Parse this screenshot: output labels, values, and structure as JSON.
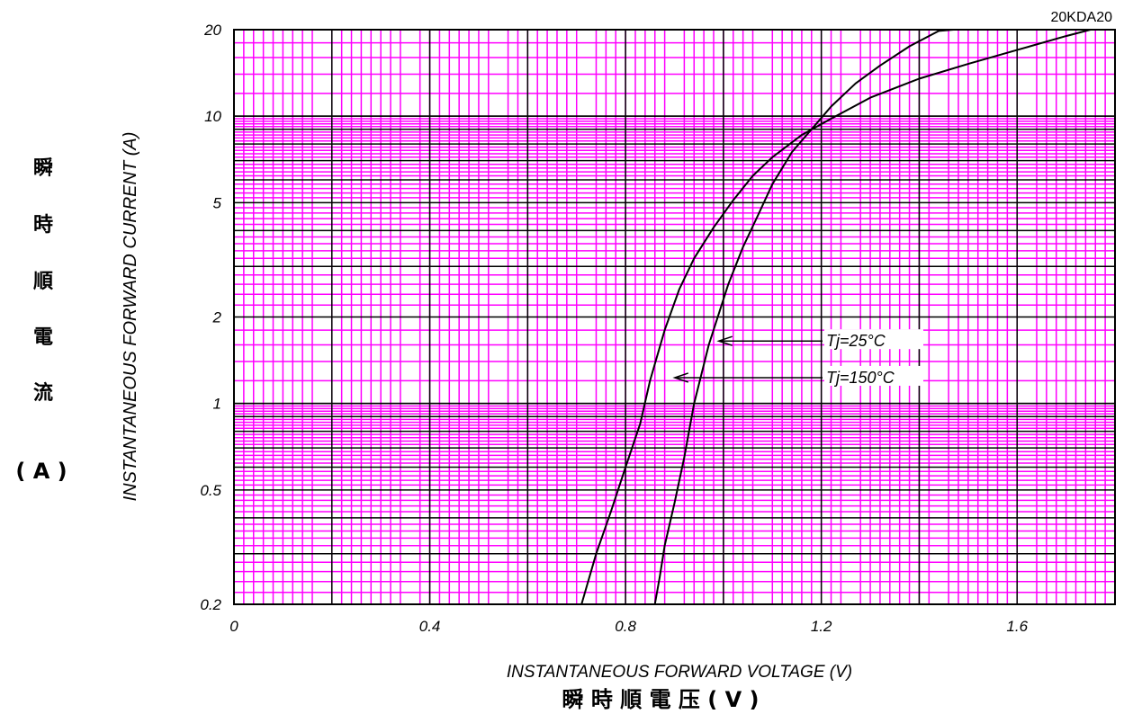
{
  "chart_data": {
    "type": "line",
    "model_label": "20KDA20",
    "y_axis_label_en": "INSTANTANEOUS FORWARD CURRENT (A)",
    "y_axis_label_cjk": [
      "瞬",
      "時",
      "順",
      "電",
      "流"
    ],
    "y_axis_unit_cjk": "( A )",
    "x_axis_label_en": "INSTANTANEOUS FORWARD VOLTAGE (V)",
    "x_axis_label_cjk": "瞬 時 順 電 压 ( V )",
    "x_scale": "linear",
    "y_scale": "log",
    "xlim": [
      0,
      1.8
    ],
    "ylim": [
      0.2,
      20
    ],
    "x_ticks": [
      {
        "value": 0,
        "label": "0"
      },
      {
        "value": 0.4,
        "label": "0.4"
      },
      {
        "value": 0.8,
        "label": "0.8"
      },
      {
        "value": 1.2,
        "label": "1.2"
      },
      {
        "value": 1.6,
        "label": "1.6"
      }
    ],
    "y_ticks": [
      {
        "value": 0.2,
        "label": "0.2"
      },
      {
        "value": 0.5,
        "label": "0.5"
      },
      {
        "value": 1,
        "label": "1"
      },
      {
        "value": 2,
        "label": "2"
      },
      {
        "value": 5,
        "label": "5"
      },
      {
        "value": 10,
        "label": "10"
      },
      {
        "value": 20,
        "label": "20"
      }
    ],
    "grid": true,
    "grid_colors": {
      "major": "#000000",
      "minor": "#ff00ff"
    },
    "line_color": "#000000",
    "series": [
      {
        "name": "Tj=25°C",
        "x": [
          0.86,
          0.87,
          0.88,
          0.9,
          0.92,
          0.94,
          0.97,
          1.01,
          1.04,
          1.07,
          1.1,
          1.14,
          1.18,
          1.22,
          1.27,
          1.32,
          1.38,
          1.44,
          1.47
        ],
        "y": [
          0.2,
          0.25,
          0.32,
          0.45,
          0.65,
          1.0,
          1.6,
          2.6,
          3.5,
          4.5,
          5.8,
          7.5,
          9.0,
          10.8,
          13.0,
          15.0,
          17.5,
          19.8,
          20.0
        ]
      },
      {
        "name": "Tj=150°C",
        "x": [
          0.71,
          0.74,
          0.77,
          0.8,
          0.83,
          0.85,
          0.88,
          0.91,
          0.94,
          0.98,
          1.02,
          1.06,
          1.1,
          1.16,
          1.22,
          1.3,
          1.4,
          1.5,
          1.6,
          1.7,
          1.75
        ],
        "y": [
          0.2,
          0.3,
          0.42,
          0.6,
          0.85,
          1.2,
          1.8,
          2.5,
          3.2,
          4.1,
          5.1,
          6.2,
          7.2,
          8.6,
          9.8,
          11.6,
          13.5,
          15.2,
          17.0,
          19.0,
          20.0
        ]
      }
    ],
    "annotations": [
      {
        "text": "Tj=25°C",
        "series": 0,
        "x": 0.985,
        "y": 1.65
      },
      {
        "text": "Tj=150°C",
        "series": 1,
        "x": 0.895,
        "y": 1.23
      }
    ]
  }
}
